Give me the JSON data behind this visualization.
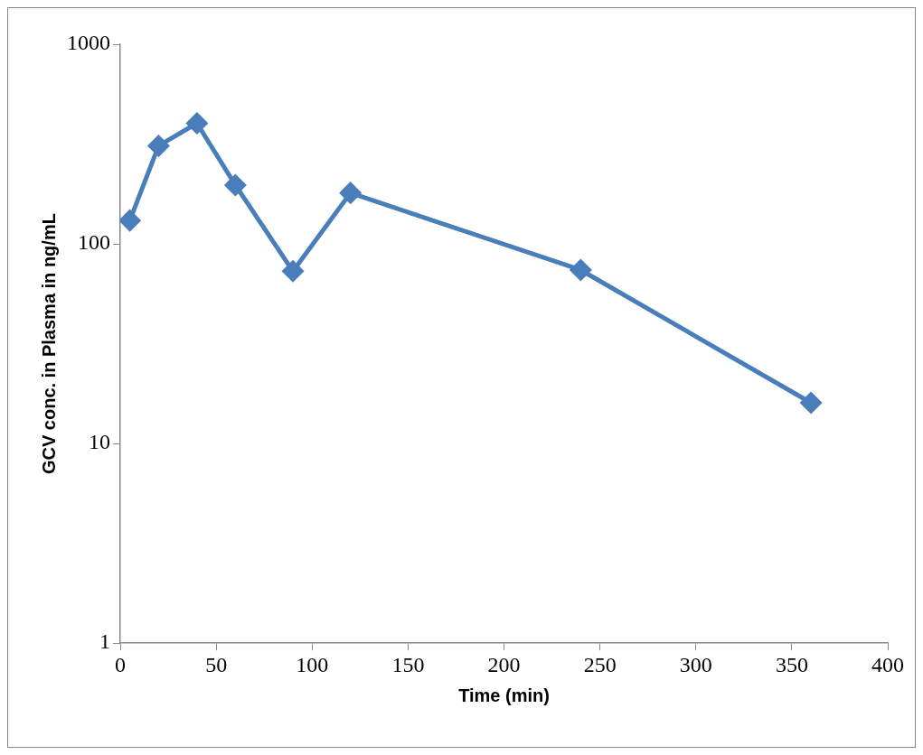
{
  "chart_data": {
    "type": "line",
    "xlabel": "Time (min)",
    "ylabel": "GCV conc. in Plasma in ng/mL",
    "x": [
      5,
      20,
      40,
      60,
      90,
      120,
      240,
      360
    ],
    "series": [
      {
        "color": "#4a7ebb",
        "values": [
          131,
          310,
          402,
          197,
          73,
          180,
          74,
          16
        ]
      }
    ],
    "xlim": [
      0,
      400
    ],
    "xticks": [
      0,
      50,
      100,
      150,
      200,
      250,
      300,
      350,
      400
    ],
    "ylim": [
      1,
      1000
    ],
    "yticks": [
      1,
      10,
      100,
      1000
    ],
    "log": "y",
    "grid": false,
    "legend": false,
    "marker": "diamond",
    "line_style": "solid"
  }
}
